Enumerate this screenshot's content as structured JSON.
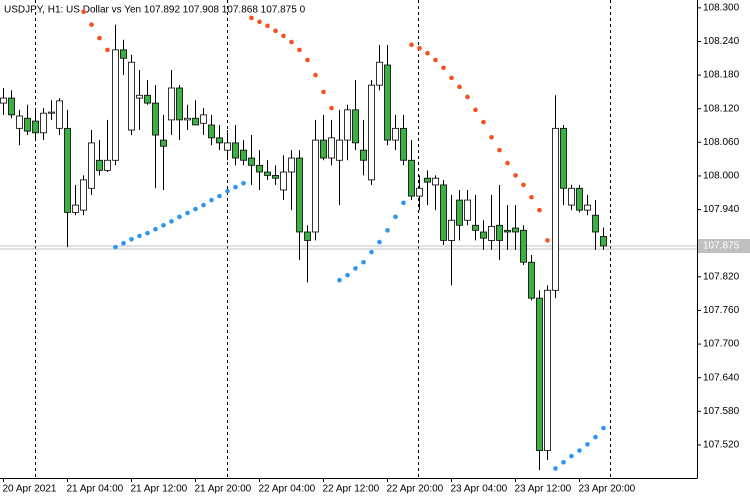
{
  "chart_data": {
    "type": "candlestick",
    "title": "USDJPY, H1:  US Dollar vs Yen  107.892 107.908 107.868 107.875  0",
    "categories": [
      "20 Apr 2021",
      null,
      null,
      null,
      null,
      null,
      null,
      null,
      "21 Apr 04:00",
      null,
      null,
      null,
      null,
      null,
      null,
      null,
      "21 Apr 12:00",
      null,
      null,
      null,
      null,
      null,
      null,
      null,
      "21 Apr 20:00",
      null,
      null,
      null,
      null,
      null,
      null,
      null,
      "22 Apr 04:00",
      null,
      null,
      null,
      null,
      null,
      null,
      null,
      "22 Apr 12:00",
      null,
      null,
      null,
      null,
      null,
      null,
      null,
      "22 Apr 20:00",
      null,
      null,
      null,
      null,
      null,
      null,
      null,
      "23 Apr 04:00",
      null,
      null,
      null,
      null,
      null,
      null,
      null,
      "23 Apr 12:00",
      null,
      null,
      null,
      null,
      null,
      null,
      null,
      "23 Apr 20:00",
      null,
      null,
      null
    ],
    "open": [
      108.13,
      108.139,
      108.085,
      108.103,
      108.098,
      108.077,
      108.112,
      108.085,
      108.085,
      107.935,
      107.939,
      107.978,
      108.028,
      108.01,
      108.028,
      108.225,
      108.082,
      108.139,
      108.144,
      108.13,
      108.064,
      108.1,
      108.157,
      108.1,
      108.103,
      108.094,
      108.091,
      108.068,
      108.046,
      108.059,
      108.046,
      108.032,
      108.019,
      108.007,
      108.001,
      107.975,
      108.007,
      108.032,
      107.9,
      107.9,
      108.064,
      108.032,
      108.028,
      108.064,
      108.118,
      108.046,
      107.993,
      108.162,
      108.198,
      108.064,
      108.085,
      108.028,
      107.964,
      107.996,
      107.984,
      107.984,
      107.885,
      107.957,
      107.921,
      107.912,
      107.9,
      107.885,
      107.912,
      107.903,
      107.907,
      107.903,
      107.846,
      107.782,
      107.51,
      107.796,
      108.085,
      107.948,
      107.978,
      107.939,
      107.93,
      107.892
    ],
    "high": [
      108.157,
      108.153,
      108.118,
      108.127,
      108.121,
      108.121,
      108.135,
      108.139,
      108.118,
      107.984,
      108.001,
      108.082,
      108.064,
      108.1,
      108.27,
      108.243,
      108.216,
      108.189,
      108.171,
      108.162,
      108.109,
      108.189,
      108.162,
      108.127,
      108.135,
      108.121,
      108.109,
      108.091,
      108.082,
      108.091,
      108.064,
      108.073,
      108.046,
      108.028,
      108.019,
      108.037,
      108.046,
      108.046,
      107.912,
      108.1,
      108.109,
      108.1,
      108.118,
      108.127,
      108.171,
      108.1,
      108.171,
      108.234,
      108.234,
      108.109,
      108.109,
      108.064,
      108.001,
      108.01,
      108.001,
      107.993,
      107.966,
      107.975,
      107.975,
      107.966,
      107.921,
      107.966,
      107.984,
      107.948,
      107.948,
      107.912,
      107.859,
      107.796,
      107.805,
      108.144,
      108.091,
      107.984,
      107.984,
      107.966,
      107.957,
      107.908
    ],
    "low": [
      108.109,
      108.103,
      108.055,
      108.073,
      108.064,
      108.064,
      108.1,
      108.073,
      107.873,
      107.93,
      107.93,
      107.966,
      108.001,
      108.007,
      108.019,
      108.18,
      108.073,
      108.082,
      108.127,
      107.978,
      107.975,
      108.073,
      108.064,
      108.082,
      108.091,
      108.073,
      108.055,
      108.046,
      108.028,
      108.019,
      108.019,
      107.984,
      107.975,
      107.993,
      107.984,
      107.957,
      107.939,
      107.85,
      107.81,
      107.885,
      108.028,
      108.019,
      107.948,
      108.028,
      108.046,
      108.001,
      107.984,
      108.153,
      108.055,
      108.046,
      108.019,
      107.957,
      107.939,
      107.948,
      107.939,
      107.877,
      107.805,
      107.885,
      107.912,
      107.885,
      107.868,
      107.868,
      107.85,
      107.868,
      107.868,
      107.841,
      107.778,
      107.475,
      107.493,
      107.782,
      107.948,
      107.939,
      107.935,
      107.93,
      107.868,
      107.868
    ],
    "close": [
      108.139,
      108.109,
      108.107,
      108.08,
      108.077,
      108.112,
      108.114,
      108.134,
      107.935,
      107.948,
      107.993,
      108.059,
      108.01,
      108.028,
      108.225,
      108.21,
      108.203,
      108.144,
      108.13,
      108.073,
      108.053,
      108.157,
      108.1,
      108.103,
      108.091,
      108.109,
      108.068,
      108.059,
      108.059,
      108.032,
      108.028,
      108.019,
      108.007,
      108.001,
      107.996,
      108.007,
      108.032,
      107.9,
      107.885,
      108.064,
      108.032,
      108.068,
      108.064,
      108.118,
      108.059,
      108.028,
      108.162,
      108.203,
      108.064,
      108.085,
      108.028,
      107.964,
      107.978,
      107.989,
      107.996,
      107.885,
      107.921,
      107.912,
      107.957,
      107.903,
      107.889,
      107.91,
      107.885,
      107.9,
      107.9,
      107.846,
      107.782,
      107.51,
      107.796,
      108.085,
      107.978,
      107.978,
      107.939,
      107.948,
      107.9,
      107.875
    ],
    "bull_color": "#ffffff",
    "bear_color": "#3cb043",
    "indicators": [
      {
        "color": "#f4511e",
        "values": [
          null,
          null,
          null,
          null,
          null,
          null,
          null,
          null,
          null,
          null,
          108.293,
          108.27,
          108.246,
          108.225,
          null,
          null,
          null,
          null,
          null,
          null,
          null,
          null,
          null,
          null,
          null,
          null,
          null,
          null,
          null,
          null,
          null,
          108.282,
          108.275,
          108.268,
          108.259,
          108.25,
          108.239,
          108.225,
          108.207,
          108.18,
          108.15,
          108.121,
          null,
          null,
          null,
          null,
          null,
          null,
          null,
          null,
          null,
          108.234,
          108.228,
          108.219,
          108.207,
          108.193,
          108.175,
          108.159,
          108.141,
          108.118,
          108.096,
          108.069,
          108.046,
          108.023,
          108.001,
          107.984,
          107.962,
          107.939,
          107.885,
          null,
          null,
          null,
          null,
          null,
          null,
          null
        ]
      },
      {
        "color": "#2e96f0",
        "values": [
          null,
          null,
          null,
          null,
          null,
          null,
          null,
          null,
          null,
          null,
          null,
          null,
          null,
          null,
          107.873,
          107.88,
          107.887,
          107.893,
          107.898,
          107.905,
          107.912,
          107.919,
          107.927,
          107.934,
          107.941,
          107.948,
          107.957,
          107.964,
          107.973,
          107.98,
          107.987,
          null,
          null,
          null,
          null,
          null,
          null,
          null,
          null,
          null,
          null,
          null,
          107.814,
          107.823,
          107.835,
          107.846,
          107.864,
          107.882,
          107.903,
          107.927,
          107.952,
          null,
          null,
          null,
          null,
          null,
          null,
          null,
          null,
          null,
          null,
          null,
          null,
          null,
          null,
          null,
          null,
          null,
          null,
          107.478,
          107.489,
          107.5,
          107.51,
          107.521,
          107.534,
          107.55
        ]
      }
    ],
    "last_price": 107.875,
    "ylim": [
      107.461,
      108.314
    ],
    "yticks": [
      {
        "value": 108.3,
        "label": "108.300"
      },
      {
        "value": 108.24,
        "label": "108.240"
      },
      {
        "value": 108.18,
        "label": "108.180"
      },
      {
        "value": 108.12,
        "label": "108.120"
      },
      {
        "value": 108.06,
        "label": "108.060"
      },
      {
        "value": 108.0,
        "label": "108.000"
      },
      {
        "value": 107.94,
        "label": "107.940"
      },
      {
        "value": 107.82,
        "label": "107.820"
      },
      {
        "value": 107.76,
        "label": "107.760"
      },
      {
        "value": 107.7,
        "label": "107.700"
      },
      {
        "value": 107.64,
        "label": "107.640"
      },
      {
        "value": 107.58,
        "label": "107.580"
      },
      {
        "value": 107.52,
        "label": "107.520"
      }
    ],
    "grid": false
  }
}
